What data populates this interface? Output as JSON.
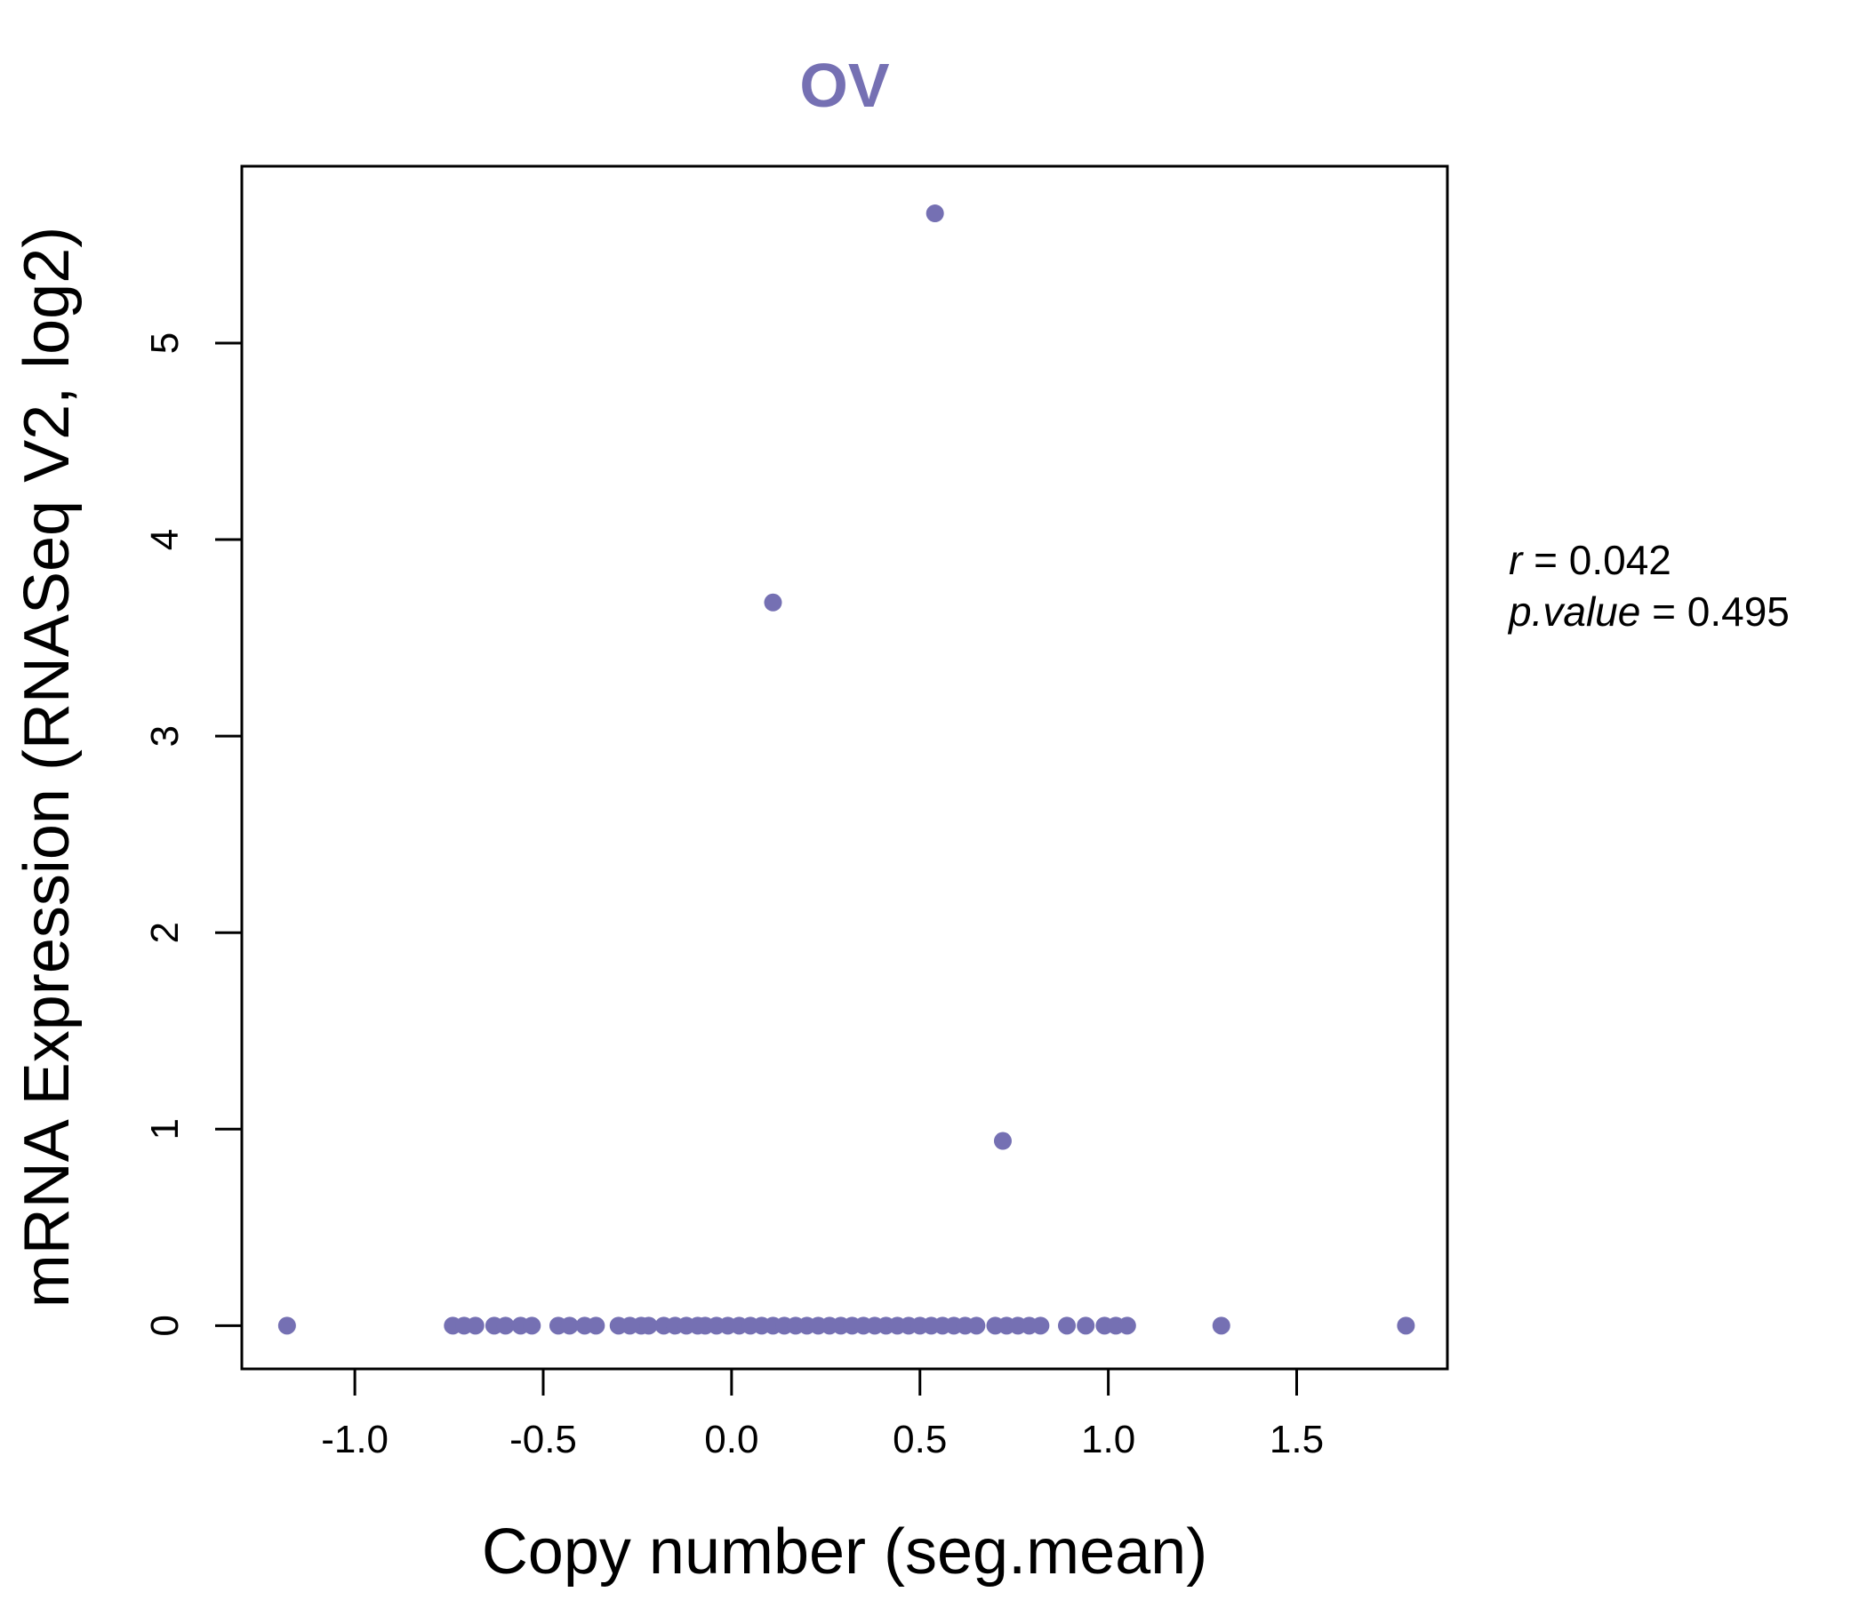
{
  "chart_data": {
    "type": "scatter",
    "title": "OV",
    "xlabel": "Copy number (seg.mean)",
    "ylabel": "mRNA Expression (RNASeq V2, log2)",
    "xlim": [
      -1.3,
      1.9
    ],
    "ylim": [
      -0.22,
      5.9
    ],
    "x_ticks": [
      "-1.0",
      "-0.5",
      "0.0",
      "0.5",
      "1.0",
      "1.5"
    ],
    "y_ticks": [
      "0",
      "1",
      "2",
      "3",
      "4",
      "5"
    ],
    "grid": false,
    "legend": "none",
    "point_color": "#7570b3",
    "annotation": {
      "r_label": "r",
      "r_value": "0.042",
      "p_label": "p.value",
      "p_value": "0.495"
    },
    "points": [
      {
        "x": -1.18,
        "y": 0
      },
      {
        "x": -0.74,
        "y": 0
      },
      {
        "x": -0.71,
        "y": 0
      },
      {
        "x": -0.68,
        "y": 0
      },
      {
        "x": -0.63,
        "y": 0
      },
      {
        "x": -0.6,
        "y": 0
      },
      {
        "x": -0.56,
        "y": 0
      },
      {
        "x": -0.53,
        "y": 0
      },
      {
        "x": -0.46,
        "y": 0
      },
      {
        "x": -0.43,
        "y": 0
      },
      {
        "x": -0.39,
        "y": 0
      },
      {
        "x": -0.36,
        "y": 0
      },
      {
        "x": -0.3,
        "y": 0
      },
      {
        "x": -0.27,
        "y": 0
      },
      {
        "x": -0.24,
        "y": 0
      },
      {
        "x": -0.22,
        "y": 0
      },
      {
        "x": -0.18,
        "y": 0
      },
      {
        "x": -0.15,
        "y": 0
      },
      {
        "x": -0.12,
        "y": 0
      },
      {
        "x": -0.09,
        "y": 0
      },
      {
        "x": -0.07,
        "y": 0
      },
      {
        "x": -0.04,
        "y": 0
      },
      {
        "x": -0.01,
        "y": 0
      },
      {
        "x": 0.02,
        "y": 0
      },
      {
        "x": 0.05,
        "y": 0
      },
      {
        "x": 0.08,
        "y": 0
      },
      {
        "x": 0.11,
        "y": 0
      },
      {
        "x": 0.14,
        "y": 0
      },
      {
        "x": 0.17,
        "y": 0
      },
      {
        "x": 0.2,
        "y": 0
      },
      {
        "x": 0.23,
        "y": 0
      },
      {
        "x": 0.26,
        "y": 0
      },
      {
        "x": 0.29,
        "y": 0
      },
      {
        "x": 0.32,
        "y": 0
      },
      {
        "x": 0.35,
        "y": 0
      },
      {
        "x": 0.38,
        "y": 0
      },
      {
        "x": 0.41,
        "y": 0
      },
      {
        "x": 0.44,
        "y": 0
      },
      {
        "x": 0.47,
        "y": 0
      },
      {
        "x": 0.5,
        "y": 0
      },
      {
        "x": 0.53,
        "y": 0
      },
      {
        "x": 0.56,
        "y": 0
      },
      {
        "x": 0.59,
        "y": 0
      },
      {
        "x": 0.62,
        "y": 0
      },
      {
        "x": 0.65,
        "y": 0
      },
      {
        "x": 0.7,
        "y": 0
      },
      {
        "x": 0.73,
        "y": 0
      },
      {
        "x": 0.76,
        "y": 0
      },
      {
        "x": 0.79,
        "y": 0
      },
      {
        "x": 0.82,
        "y": 0
      },
      {
        "x": 0.89,
        "y": 0
      },
      {
        "x": 0.94,
        "y": 0
      },
      {
        "x": 0.99,
        "y": 0
      },
      {
        "x": 1.02,
        "y": 0
      },
      {
        "x": 1.05,
        "y": 0
      },
      {
        "x": 1.3,
        "y": 0
      },
      {
        "x": 1.79,
        "y": 0
      },
      {
        "x": 0.11,
        "y": 3.68
      },
      {
        "x": 0.54,
        "y": 5.66
      },
      {
        "x": 0.72,
        "y": 0.94
      }
    ]
  }
}
